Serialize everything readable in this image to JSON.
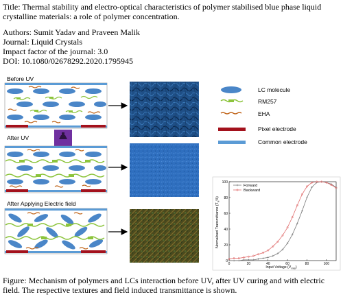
{
  "title": "Title: Thermal stability and electro-optical characteristics of polymer stabilised blue phase liquid crystalline materials: a role of polymer concentration.",
  "authors": "Authors: Sumit Yadav and Praveen Malik",
  "journal": "Journal: Liquid Crystals",
  "impact_factor": "Impact factor of the journal: 3.0",
  "doi": "DOI: 10.1080/02678292.2020.1795945",
  "panels": {
    "before": "Before UV",
    "after": "After UV",
    "field": "After Applying Electric field"
  },
  "legend": {
    "lc": "LC molecule",
    "rm": "RM257",
    "eha": "EHA",
    "pixel": "Pixel electrode",
    "common": "Common electrode"
  },
  "colors": {
    "lc": "#4a86c8",
    "rm": "#8cc43c",
    "eha": "#c0651a",
    "pixel": "#a3111c",
    "common": "#5b9bd5",
    "uv_box": "#7030a0",
    "forward": "#7a7a7a",
    "backward": "#e06a6a"
  },
  "caption": "Figure: Mechanism of polymers and LCs interaction before UV, after UV curing and with electric field. The respective textures and field induced transmittance is shown.",
  "chart_data": {
    "type": "line",
    "xlabel": "Input Voltage (V",
    "xlabel_sub": "rms",
    "xlabel_close": ")",
    "ylabel": "Normalised Transmittance (T",
    "ylabel_sub": "N",
    "ylabel_close": "%)",
    "xlim": [
      0,
      110
    ],
    "ylim": [
      0,
      100
    ],
    "xticks": [
      0,
      20,
      40,
      60,
      80,
      100
    ],
    "yticks": [
      0,
      20,
      40,
      60,
      80,
      100
    ],
    "legend_position": "top-left",
    "series": [
      {
        "name": "Forward",
        "color": "#7a7a7a",
        "x": [
          0,
          5,
          10,
          15,
          20,
          25,
          30,
          35,
          40,
          45,
          50,
          55,
          60,
          65,
          70,
          75,
          80,
          85,
          90,
          95,
          100,
          105,
          110
        ],
        "y": [
          0,
          0,
          0,
          1,
          1,
          1,
          2,
          3,
          4,
          6,
          9,
          14,
          22,
          33,
          47,
          63,
          80,
          93,
          99,
          100,
          99,
          97,
          93
        ]
      },
      {
        "name": "Backward",
        "color": "#e06a6a",
        "x": [
          0,
          5,
          10,
          15,
          20,
          25,
          30,
          35,
          40,
          45,
          50,
          55,
          60,
          65,
          70,
          75,
          80,
          85,
          90,
          95,
          100,
          105,
          110
        ],
        "y": [
          2,
          3,
          3,
          4,
          5,
          6,
          8,
          10,
          13,
          18,
          24,
          32,
          42,
          55,
          70,
          84,
          94,
          99,
          100,
          100,
          99,
          96,
          92
        ]
      }
    ]
  }
}
